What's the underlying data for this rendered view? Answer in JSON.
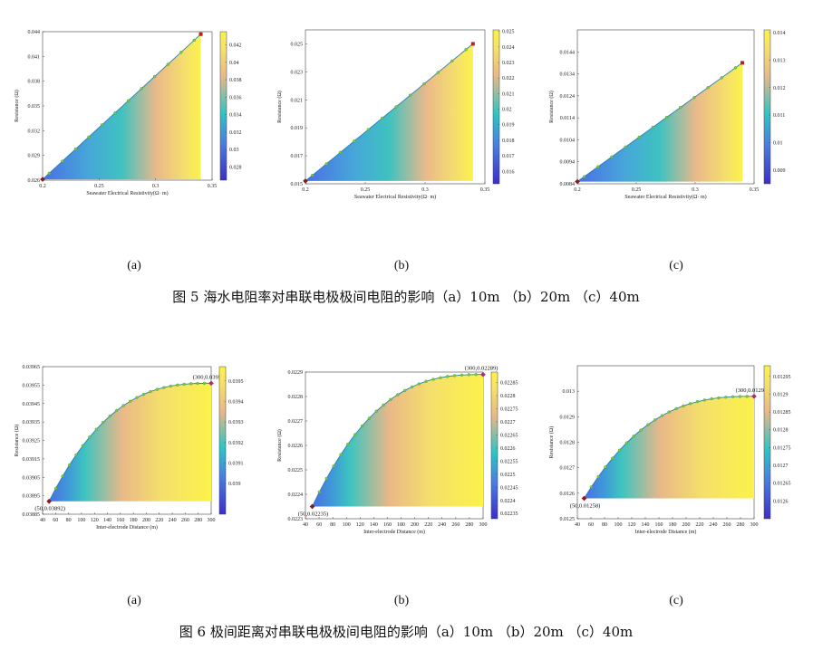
{
  "figure5": {
    "caption": "图 5  海水电阻率对串联电极极间电阻的影响（a）10m  （b）20m  （c）40m",
    "sublabels": [
      "(a)",
      "(b)",
      "(c)"
    ]
  },
  "figure6": {
    "caption": "图 6  极间距离对串联电极极间电阻的影响（a）10m  （b）20m  （c）40m",
    "sublabels": [
      "(a)",
      "(b)",
      "(c)"
    ]
  },
  "colors": {
    "curve": "#2a7fb0",
    "marker": "#7ac943",
    "start_point": "#8b1a1a",
    "end_point": "#b22222",
    "colormap": [
      "#3b2fc8",
      "#4a7de0",
      "#2ec4c4",
      "#e9b888",
      "#f6e06a",
      "#fbf24a"
    ]
  },
  "chart_data": [
    {
      "type": "area",
      "panel": "fig5a",
      "xlabel": "Seawater Electrical Resistivity(Ω· m)",
      "ylabel": "Resistance (Ω)",
      "xlim": [
        0.2,
        0.35
      ],
      "ylim": [
        0.026,
        0.044
      ],
      "xticks": [
        "0.2",
        "0.25",
        "0.3",
        "0.35"
      ],
      "yticks": [
        "0.026",
        "0.029",
        "0.032",
        "0.035",
        "0.038",
        "0.041",
        "0.044"
      ],
      "colorbar_ticks": [
        "0.028",
        "0.03",
        "0.032",
        "0.034",
        "0.036",
        "0.038",
        "0.04",
        "0.042"
      ],
      "clim": [
        0.0265,
        0.0435
      ],
      "x": [
        0.2,
        0.34
      ],
      "y": [
        0.0261,
        0.0437
      ],
      "curve": "linear"
    },
    {
      "type": "area",
      "panel": "fig5b",
      "xlabel": "Seawater Electrical Resistivity(Ω· m)",
      "ylabel": "Resistance (Ω)",
      "xlim": [
        0.2,
        0.35
      ],
      "ylim": [
        0.015,
        0.026
      ],
      "xticks": [
        "0.2",
        "0.25",
        "0.3",
        "0.35"
      ],
      "yticks": [
        "0.015",
        "0.017",
        "0.019",
        "0.021",
        "0.023",
        "0.025"
      ],
      "colorbar_ticks": [
        "0.016",
        "0.017",
        "0.018",
        "0.019",
        "0.02",
        "0.021",
        "0.022",
        "0.023",
        "0.024",
        "0.025"
      ],
      "clim": [
        0.0152,
        0.0251
      ],
      "x": [
        0.2,
        0.34
      ],
      "y": [
        0.0152,
        0.025
      ],
      "curve": "linear"
    },
    {
      "type": "area",
      "panel": "fig5c",
      "xlabel": "Seawater Electrical Resistivity(Ω· m)",
      "ylabel": "Resistance (Ω)",
      "xlim": [
        0.2,
        0.35
      ],
      "ylim": [
        0.0084,
        0.0154
      ],
      "xticks": [
        "0.2",
        "0.25",
        "0.3",
        "0.35"
      ],
      "yticks": [
        "0.0084",
        "0.0094",
        "0.0104",
        "0.0114",
        "0.0124",
        "0.0134",
        "0.0144"
      ],
      "colorbar_ticks": [
        "0.009",
        "0.01",
        "0.011",
        "0.012",
        "0.013",
        "0.014"
      ],
      "clim": [
        0.0085,
        0.0141
      ],
      "x": [
        0.2,
        0.34
      ],
      "y": [
        0.0085,
        0.0139
      ],
      "curve": "linear"
    },
    {
      "type": "area",
      "panel": "fig6a",
      "xlabel": "Inter-electrode Distance (m)",
      "ylabel": "Resistance (Ω)",
      "xlim": [
        40,
        300
      ],
      "ylim": [
        0.03885,
        0.03965
      ],
      "xticks": [
        "40",
        "60",
        "80",
        "100",
        "120",
        "140",
        "160",
        "180",
        "200",
        "220",
        "240",
        "260",
        "280",
        "300"
      ],
      "yticks": [
        "0.03885",
        "0.03895",
        "0.03905",
        "0.03915",
        "0.03925",
        "0.03935",
        "0.03945",
        "0.03955",
        "0.03965"
      ],
      "colorbar_ticks": [
        "0.039",
        "0.0391",
        "0.0392",
        "0.0393",
        "0.0394",
        "0.0395"
      ],
      "clim": [
        0.03885,
        0.03957
      ],
      "x": [
        50,
        300
      ],
      "y": [
        0.03892,
        0.03956
      ],
      "curve": "saturating",
      "annotations": [
        "(50,0.03892)",
        "(300,0.03956)"
      ]
    },
    {
      "type": "area",
      "panel": "fig6b",
      "xlabel": "Inter-electrode Distance (m)",
      "ylabel": "Resistance (Ω)",
      "xlim": [
        40,
        300
      ],
      "ylim": [
        0.0223,
        0.0229
      ],
      "xticks": [
        "40",
        "60",
        "80",
        "100",
        "120",
        "140",
        "160",
        "180",
        "200",
        "220",
        "240",
        "260",
        "280",
        "300"
      ],
      "yticks": [
        "0.0223",
        "0.0224",
        "0.0225",
        "0.0226",
        "0.0227",
        "0.0228",
        "0.0229"
      ],
      "colorbar_ticks": [
        "0.02235",
        "0.0224",
        "0.02245",
        "0.0225",
        "0.02255",
        "0.0226",
        "0.02265",
        "0.0227",
        "0.02275",
        "0.0228",
        "0.02285"
      ],
      "clim": [
        0.02233,
        0.02289
      ],
      "x": [
        50,
        300
      ],
      "y": [
        0.02235,
        0.02289
      ],
      "curve": "saturating",
      "annotations": [
        "(50,0.02235)",
        "(300,0.02289)"
      ]
    },
    {
      "type": "area",
      "panel": "fig6c",
      "xlabel": "Inter-electrode Distance (m)",
      "ylabel": "Resistance (Ω)",
      "xlim": [
        40,
        300
      ],
      "ylim": [
        0.0125,
        0.0131
      ],
      "xticks": [
        "40",
        "60",
        "80",
        "100",
        "120",
        "140",
        "160",
        "180",
        "200",
        "220",
        "240",
        "260",
        "280",
        "300"
      ],
      "yticks": [
        "0.0125",
        "0.0126",
        "0.0127",
        "0.0128",
        "0.0129",
        "0.013"
      ],
      "colorbar_ticks": [
        "0.0126",
        "0.01265",
        "0.0127",
        "0.01275",
        "0.0128",
        "0.01285",
        "0.0129",
        "0.01295"
      ],
      "clim": [
        0.01255,
        0.01298
      ],
      "x": [
        50,
        300
      ],
      "y": [
        0.01258,
        0.01298
      ],
      "curve": "saturating",
      "annotations": [
        "(50,0.01258)",
        "(300,0.01298)"
      ]
    }
  ]
}
